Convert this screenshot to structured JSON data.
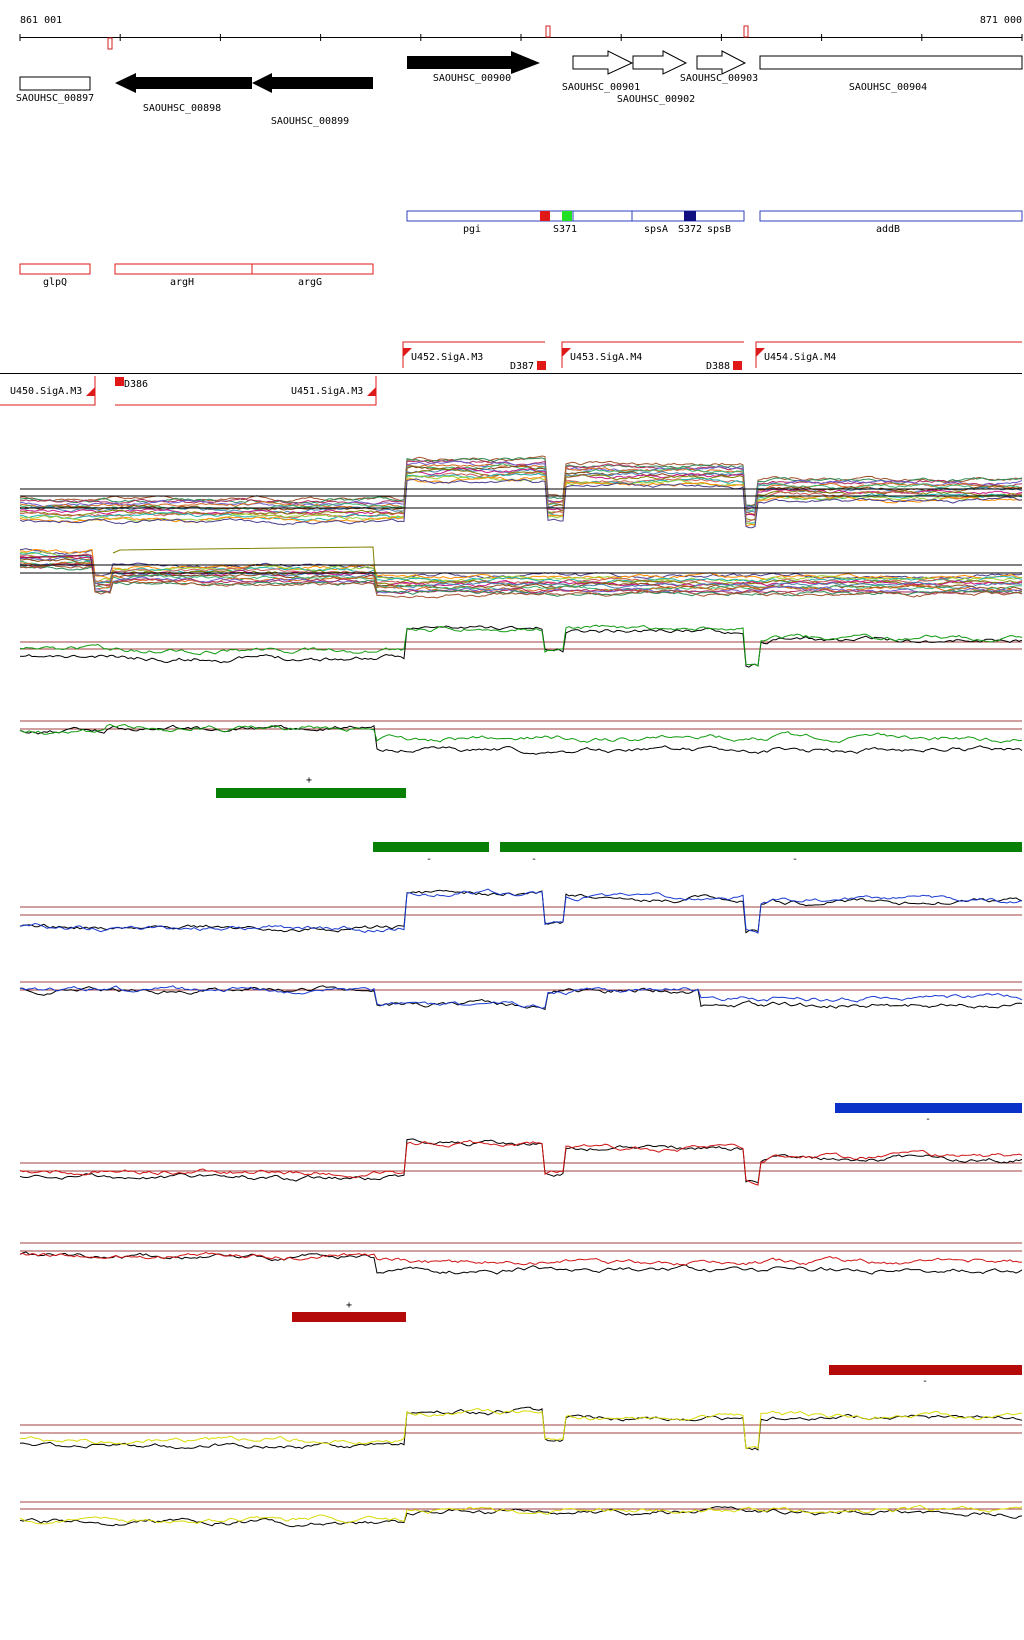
{
  "coords": {
    "start": "861 001",
    "end": "871 000"
  },
  "genes": [
    {
      "label": "SAOUHSC_00897",
      "strand": "+",
      "filled": false
    },
    {
      "label": "SAOUHSC_00898",
      "strand": "-",
      "filled": true
    },
    {
      "label": "SAOUHSC_00899",
      "strand": "-",
      "filled": true
    },
    {
      "label": "SAOUHSC_00900",
      "strand": "+",
      "filled": true
    },
    {
      "label": "SAOUHSC_00901",
      "strand": "+",
      "filled": false
    },
    {
      "label": "SAOUHSC_00902",
      "strand": "+",
      "filled": false
    },
    {
      "label": "SAOUHSC_00903",
      "strand": "+",
      "filled": false
    },
    {
      "label": "SAOUHSC_00904",
      "strand": "+",
      "filled": false
    }
  ],
  "features_plus": [
    {
      "label": "pgi"
    },
    {
      "label": "S371"
    },
    {
      "label": "spsA"
    },
    {
      "label": "S372"
    },
    {
      "label": "spsB"
    },
    {
      "label": "addB"
    }
  ],
  "features_minus": [
    {
      "label": "glpQ"
    },
    {
      "label": "argH"
    },
    {
      "label": "argG"
    }
  ],
  "transcripts": [
    {
      "label": "U452.SigA.M3"
    },
    {
      "label": "U453.SigA.M4"
    },
    {
      "label": "U454.SigA.M4"
    },
    {
      "label": "U450.SigA.M3"
    },
    {
      "label": "U451.SigA.M3"
    },
    {
      "label": "D386"
    },
    {
      "label": "D387"
    },
    {
      "label": "D388"
    }
  ],
  "segment_bars": [
    {
      "sign": "+",
      "color": "#088008"
    },
    {
      "sign": "-",
      "color": "#088008"
    },
    {
      "sign": "-",
      "color": "#088008"
    },
    {
      "sign": "-",
      "color": "#088008"
    },
    {
      "sign": "-",
      "color": "#0a32c8"
    },
    {
      "sign": "+",
      "color": "#b40a0a"
    },
    {
      "sign": "-",
      "color": "#b40a0a"
    }
  ],
  "track_colors": {
    "green": "#129a12",
    "blue": "#1a3ad0",
    "red": "#d01414",
    "yellow": "#dada0a",
    "gene_outline": "#3040c0",
    "feature_red": "#dd1a1a"
  }
}
